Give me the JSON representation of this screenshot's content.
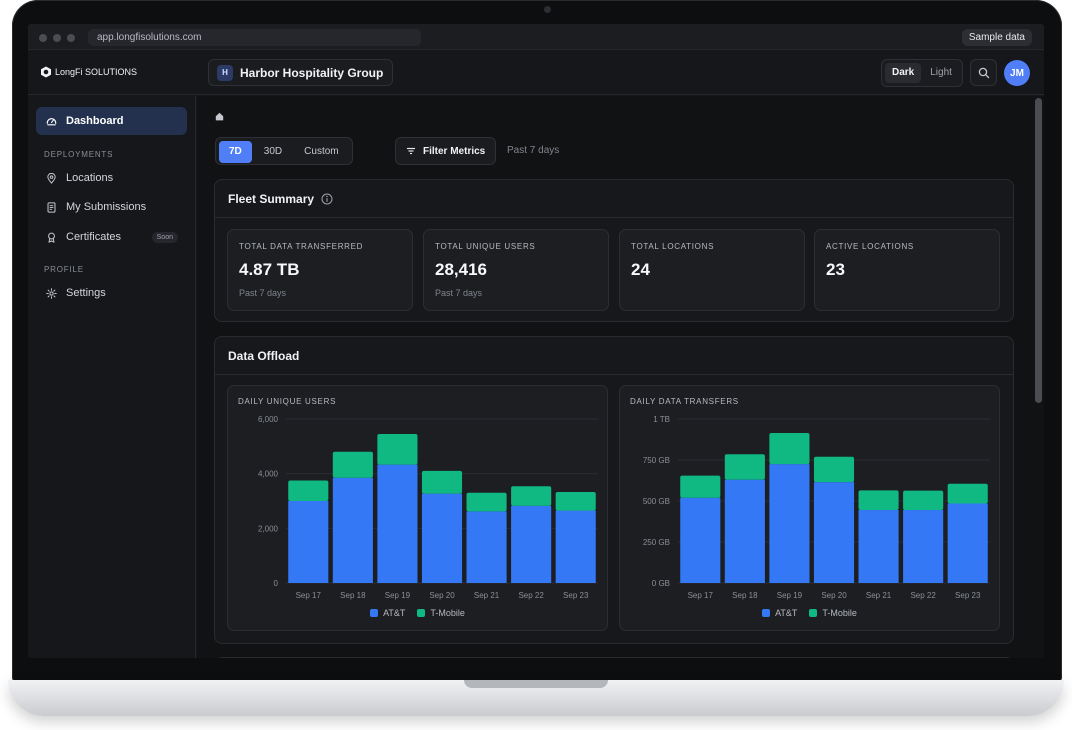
{
  "browser": {
    "url": "app.longfisolutions.com",
    "sample_badge": "Sample data"
  },
  "header": {
    "logo_text": "LongFi SOLUTIONS",
    "org": {
      "badge": "H",
      "name": "Harbor Hospitality Group"
    },
    "theme": {
      "dark": "Dark",
      "light": "Light",
      "selected": "Dark"
    },
    "avatar_initials": "JM"
  },
  "sidebar": {
    "dashboard": "Dashboard",
    "deployments_heading": "DEPLOYMENTS",
    "items": [
      {
        "label": "Locations",
        "icon": "map-pin-icon"
      },
      {
        "label": "My Submissions",
        "icon": "document-icon"
      },
      {
        "label": "Certificates",
        "icon": "award-icon",
        "badge": "Soon"
      }
    ],
    "profile_heading": "PROFILE",
    "settings": "Settings"
  },
  "toolbar": {
    "ranges": [
      "7D",
      "30D",
      "Custom"
    ],
    "selected_range": "7D",
    "filter_label": "Filter Metrics",
    "range_caption": "Past 7 days"
  },
  "fleet_summary": {
    "title": "Fleet Summary",
    "cards": [
      {
        "label": "TOTAL DATA TRANSFERRED",
        "value": "4.87 TB",
        "sub": "Past 7 days"
      },
      {
        "label": "TOTAL UNIQUE USERS",
        "value": "28,416",
        "sub": "Past 7 days"
      },
      {
        "label": "TOTAL LOCATIONS",
        "value": "24",
        "sub": ""
      },
      {
        "label": "ACTIVE LOCATIONS",
        "value": "23",
        "sub": ""
      }
    ]
  },
  "data_offload": {
    "title": "Data Offload",
    "legend": [
      "AT&T",
      "T-Mobile"
    ],
    "colors": {
      "att": "#3478f6",
      "tmobile": "#10b981"
    }
  },
  "chart_data": [
    {
      "type": "bar",
      "stacked": true,
      "title": "DAILY UNIQUE USERS",
      "categories": [
        "Sep 17",
        "Sep 18",
        "Sep 19",
        "Sep 20",
        "Sep 21",
        "Sep 22",
        "Sep 23"
      ],
      "series": [
        {
          "name": "AT&T",
          "values": [
            3000,
            3850,
            4330,
            3270,
            2620,
            2820,
            2650
          ]
        },
        {
          "name": "T-Mobile",
          "values": [
            750,
            950,
            1120,
            830,
            680,
            720,
            680
          ]
        }
      ],
      "ylim": [
        0,
        6000
      ],
      "yticks": [
        "6,000",
        "4,000",
        "2,000",
        "0"
      ],
      "ytick_values": [
        6000,
        4000,
        2000,
        0
      ],
      "grid": true,
      "legend": "bottom"
    },
    {
      "type": "bar",
      "stacked": true,
      "title": "DAILY DATA TRANSFERS",
      "categories": [
        "Sep 17",
        "Sep 18",
        "Sep 19",
        "Sep 20",
        "Sep 21",
        "Sep 22",
        "Sep 23"
      ],
      "series": [
        {
          "name": "AT&T",
          "values": [
            520,
            630,
            725,
            615,
            445,
            445,
            485
          ]
        },
        {
          "name": "T-Mobile",
          "values": [
            135,
            155,
            190,
            155,
            120,
            118,
            120
          ]
        }
      ],
      "ylim": [
        0,
        1000
      ],
      "yticks": [
        "1 TB",
        "750 GB",
        "500 GB",
        "250 GB",
        "0 GB"
      ],
      "ytick_values": [
        1000,
        750,
        500,
        250,
        0
      ],
      "grid": true,
      "legend": "bottom"
    }
  ]
}
